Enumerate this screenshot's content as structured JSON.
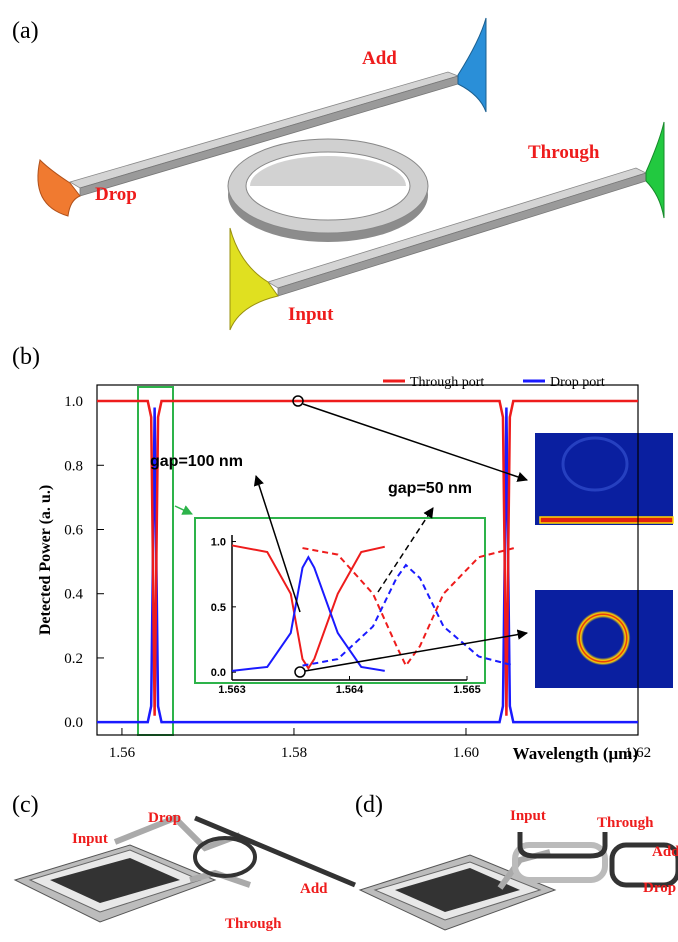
{
  "panel_labels": [
    "(a)",
    "(b)",
    "(c)",
    "(d)"
  ],
  "diagram_a": {
    "labels": [
      "Add",
      "Through",
      "Drop",
      "Input"
    ]
  },
  "chart_data": [
    {
      "type": "line",
      "xlabel": "Wavelength (μm)",
      "ylabel": "Detected Power (a. u.)",
      "xlim": [
        1.5571,
        1.62
      ],
      "ylim": [
        -0.04,
        1.05
      ],
      "xticks": [
        1.56,
        1.58,
        {
          "value": 1.6,
          "label": "1.60"
        },
        1.62
      ],
      "yticks": [
        {
          "value": 0,
          "label": "0.0"
        },
        {
          "value": 0.2,
          "label": "0.2"
        },
        {
          "value": 0.4,
          "label": "0.4"
        },
        {
          "value": 0.6,
          "label": "0.6"
        },
        {
          "value": 0.8,
          "label": "0.8"
        },
        {
          "value": 1,
          "label": "1.0"
        }
      ],
      "legend": "top-right",
      "x": [
        1.5571,
        1.563,
        1.5634,
        1.5636,
        1.5638,
        1.564,
        1.5642,
        1.5646,
        1.6039,
        1.6043,
        1.6045,
        1.6047,
        1.6049,
        1.6051,
        1.6055,
        1.62
      ],
      "series": [
        {
          "name": "Drop port",
          "color": "#1a1aff",
          "values": [
            0,
            0,
            0.05,
            0.5,
            0.98,
            0.5,
            0.05,
            0,
            0,
            0.05,
            0.5,
            0.98,
            0.5,
            0.05,
            0,
            0
          ]
        },
        {
          "name": "Through port",
          "color": "#ee1c1c",
          "values": [
            1,
            1,
            0.95,
            0.5,
            0.02,
            0.5,
            0.95,
            1,
            1,
            0.95,
            0.5,
            0.02,
            0.5,
            0.95,
            1,
            1
          ]
        }
      ],
      "annotations": [
        "gap=100 nm",
        "gap=50 nm"
      ]
    },
    {
      "type": "line",
      "xlim": [
        1.563,
        1.565
      ],
      "ylim": [
        -0.06,
        1.05
      ],
      "xticks": [
        1.563,
        1.564,
        1.565
      ],
      "yticks": [
        {
          "value": 0,
          "label": "0.0"
        },
        {
          "value": 0.5,
          "label": "0.5"
        },
        {
          "value": 1,
          "label": "1.0"
        }
      ],
      "series": [
        {
          "color": "#ee1c1c",
          "style": "solid",
          "x": [
            1.563,
            1.5633,
            1.5635,
            1.5636,
            1.56365,
            1.5637,
            1.5639,
            1.5641,
            1.5643
          ],
          "values": [
            0.97,
            0.92,
            0.6,
            0.1,
            0.03,
            0.1,
            0.6,
            0.92,
            0.96
          ]
        },
        {
          "color": "#1a1aff",
          "style": "solid",
          "x": [
            1.563,
            1.5633,
            1.5635,
            1.5636,
            1.56365,
            1.5637,
            1.5639,
            1.5641,
            1.5643
          ],
          "values": [
            0.01,
            0.04,
            0.3,
            0.8,
            0.88,
            0.8,
            0.3,
            0.04,
            0.01
          ]
        },
        {
          "color": "#ee1c1c",
          "style": "dashed",
          "x": [
            1.5636,
            1.5639,
            1.5642,
            1.5644,
            1.56448,
            1.5646,
            1.5648,
            1.5651,
            1.5654
          ],
          "values": [
            0.95,
            0.9,
            0.6,
            0.2,
            0.05,
            0.2,
            0.6,
            0.88,
            0.95
          ]
        },
        {
          "color": "#1a1aff",
          "style": "dashed",
          "x": [
            1.5636,
            1.5639,
            1.5642,
            1.5644,
            1.56448,
            1.5646,
            1.5648,
            1.5651,
            1.5654
          ],
          "values": [
            0.05,
            0.1,
            0.35,
            0.72,
            0.82,
            0.72,
            0.35,
            0.12,
            0.05
          ]
        }
      ]
    }
  ],
  "diagram_c": {
    "labels": [
      "Drop",
      "Input",
      "Add",
      "Through"
    ]
  },
  "diagram_d": {
    "labels": [
      "Input",
      "Through",
      "Add",
      "Drop"
    ]
  }
}
